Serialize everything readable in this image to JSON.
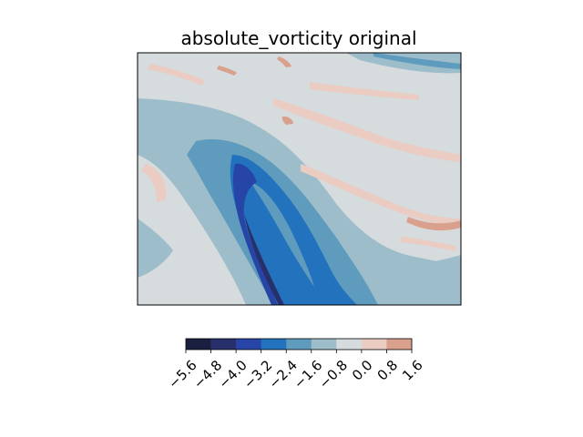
{
  "chart_data": {
    "type": "heatmap",
    "title": "absolute_vorticity original",
    "xlabel": "",
    "ylabel": "",
    "colorbar": {
      "orientation": "horizontal",
      "placement": "bottom",
      "levels": [
        -5.6,
        -4.8,
        -4.0,
        -3.2,
        -2.4,
        -1.6,
        -0.8,
        0.0,
        0.8,
        1.6
      ],
      "tick_labels": [
        "−5.6",
        "−4.8",
        "−4.0",
        "−3.2",
        "−2.4",
        "−1.6",
        "−0.8",
        "0.0",
        "0.8",
        "1.6"
      ],
      "colors": [
        "#1a1f3f",
        "#27306b",
        "#2645a6",
        "#2272bd",
        "#5e9bbc",
        "#9dbdca",
        "#d6dbde",
        "#eaccc3",
        "#d9a08d"
      ]
    },
    "field_background_level": "-0.8 to 0.0",
    "axes_ticks": "none"
  }
}
